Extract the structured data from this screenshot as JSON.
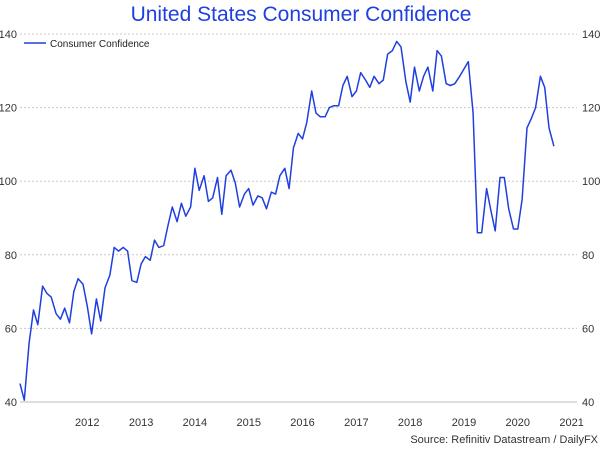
{
  "chart_data": {
    "type": "line",
    "title": "United States Consumer Confidence",
    "source": "Source: Refinitiv Datastream / DailyFX",
    "xlabel": "",
    "ylabel": "",
    "ylim": [
      40,
      140
    ],
    "y_ticks": [
      40,
      60,
      80,
      100,
      120,
      140
    ],
    "y_ticks_right": [
      40,
      60,
      80,
      100,
      120,
      140
    ],
    "x_ticks": [
      "2012",
      "2013",
      "2014",
      "2015",
      "2016",
      "2017",
      "2018",
      "2019",
      "2020",
      "2021"
    ],
    "x_range": [
      2011.25,
      2021.6
    ],
    "grid": "horizontal dotted",
    "legend_position": "top-left",
    "series": [
      {
        "name": "Consumer Confidence",
        "color": "#1f3fe0",
        "points": [
          [
            2011.25,
            45
          ],
          [
            2011.33,
            40.5
          ],
          [
            2011.42,
            56
          ],
          [
            2011.5,
            65
          ],
          [
            2011.58,
            61
          ],
          [
            2011.67,
            71.5
          ],
          [
            2011.75,
            69.5
          ],
          [
            2011.83,
            68.5
          ],
          [
            2011.92,
            64
          ],
          [
            2012.0,
            62.5
          ],
          [
            2012.08,
            65.5
          ],
          [
            2012.17,
            61.5
          ],
          [
            2012.25,
            70
          ],
          [
            2012.33,
            73.5
          ],
          [
            2012.42,
            72
          ],
          [
            2012.5,
            66
          ],
          [
            2012.58,
            58.5
          ],
          [
            2012.67,
            68
          ],
          [
            2012.75,
            62
          ],
          [
            2012.83,
            71
          ],
          [
            2012.92,
            74.5
          ],
          [
            2013.0,
            82
          ],
          [
            2013.08,
            81
          ],
          [
            2013.17,
            82
          ],
          [
            2013.25,
            81
          ],
          [
            2013.33,
            73
          ],
          [
            2013.42,
            72.5
          ],
          [
            2013.5,
            77.5
          ],
          [
            2013.58,
            79.5
          ],
          [
            2013.67,
            78.5
          ],
          [
            2013.75,
            84
          ],
          [
            2013.83,
            82
          ],
          [
            2013.92,
            82.5
          ],
          [
            2014.0,
            88
          ],
          [
            2014.08,
            93
          ],
          [
            2014.17,
            89
          ],
          [
            2014.25,
            94
          ],
          [
            2014.33,
            90.5
          ],
          [
            2014.42,
            93
          ],
          [
            2014.5,
            103.5
          ],
          [
            2014.58,
            97.5
          ],
          [
            2014.67,
            101.5
          ],
          [
            2014.75,
            94.5
          ],
          [
            2014.83,
            95.5
          ],
          [
            2014.92,
            101
          ],
          [
            2015.0,
            91
          ],
          [
            2015.08,
            101.5
          ],
          [
            2015.17,
            103
          ],
          [
            2015.25,
            99.5
          ],
          [
            2015.33,
            93
          ],
          [
            2015.42,
            96.5
          ],
          [
            2015.5,
            98
          ],
          [
            2015.58,
            93.5
          ],
          [
            2015.67,
            96
          ],
          [
            2015.75,
            95.5
          ],
          [
            2015.83,
            92.5
          ],
          [
            2015.92,
            97
          ],
          [
            2016.0,
            96.5
          ],
          [
            2016.08,
            101.5
          ],
          [
            2016.17,
            103.5
          ],
          [
            2016.25,
            98
          ],
          [
            2016.33,
            109
          ],
          [
            2016.42,
            113
          ],
          [
            2016.5,
            111.5
          ],
          [
            2016.58,
            116
          ],
          [
            2016.67,
            124.5
          ],
          [
            2016.75,
            118.5
          ],
          [
            2016.83,
            117.5
          ],
          [
            2016.92,
            117.5
          ],
          [
            2017.0,
            120
          ],
          [
            2017.08,
            120.5
          ],
          [
            2017.17,
            120.5
          ],
          [
            2017.25,
            126
          ],
          [
            2017.33,
            128.5
          ],
          [
            2017.42,
            123
          ],
          [
            2017.5,
            124.5
          ],
          [
            2017.58,
            129.5
          ],
          [
            2017.67,
            127.5
          ],
          [
            2017.75,
            125.5
          ],
          [
            2017.83,
            128.5
          ],
          [
            2017.92,
            126.5
          ],
          [
            2018.0,
            127.5
          ],
          [
            2018.08,
            134.5
          ],
          [
            2018.17,
            135.5
          ],
          [
            2018.25,
            138
          ],
          [
            2018.33,
            136.5
          ],
          [
            2018.42,
            127
          ],
          [
            2018.5,
            121.5
          ],
          [
            2018.58,
            131
          ],
          [
            2018.67,
            124.5
          ],
          [
            2018.75,
            128.5
          ],
          [
            2018.83,
            131
          ],
          [
            2018.92,
            124.5
          ],
          [
            2019.0,
            135.5
          ],
          [
            2019.08,
            134
          ],
          [
            2019.17,
            126.5
          ],
          [
            2019.25,
            126
          ],
          [
            2019.33,
            126.5
          ],
          [
            2019.42,
            128.5
          ],
          [
            2019.58,
            132.5
          ],
          [
            2019.67,
            118.5
          ],
          [
            2019.75,
            86
          ],
          [
            2019.83,
            86
          ],
          [
            2019.92,
            98
          ],
          [
            2020.0,
            92
          ],
          [
            2020.08,
            86.5
          ],
          [
            2020.17,
            101
          ],
          [
            2020.25,
            101
          ],
          [
            2020.33,
            92.5
          ],
          [
            2020.42,
            87
          ],
          [
            2020.5,
            87
          ],
          [
            2020.58,
            95
          ],
          [
            2020.67,
            114.5
          ],
          [
            2020.75,
            117
          ],
          [
            2020.83,
            120
          ],
          [
            2020.92,
            128.5
          ],
          [
            2021.0,
            125.5
          ],
          [
            2021.08,
            114.5
          ],
          [
            2021.17,
            109.5
          ]
        ]
      }
    ]
  }
}
